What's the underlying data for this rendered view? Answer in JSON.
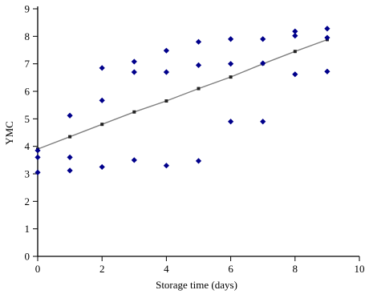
{
  "chart_data": {
    "type": "scatter",
    "title": "",
    "xlabel": "Storage time (days)",
    "ylabel": "YMC",
    "xlim": [
      0,
      10
    ],
    "ylim": [
      0,
      9
    ],
    "xticks": [
      0,
      2,
      4,
      6,
      8,
      10
    ],
    "yticks": [
      0,
      1,
      2,
      3,
      4,
      5,
      6,
      7,
      8,
      9
    ],
    "grid": false,
    "legend": "none",
    "colors": {
      "observed": "#00008b",
      "fitted": "#222222",
      "line": "#808080",
      "axis": "#000000"
    },
    "series": [
      {
        "kind": "observed",
        "marker": "diamond",
        "points": [
          [
            0,
            3.05
          ],
          [
            0,
            3.6
          ],
          [
            0,
            3.85
          ],
          [
            1,
            3.12
          ],
          [
            1,
            3.6
          ],
          [
            1,
            5.12
          ],
          [
            2,
            3.25
          ],
          [
            2,
            5.67
          ],
          [
            2,
            6.85
          ],
          [
            3,
            3.5
          ],
          [
            3,
            6.7
          ],
          [
            3,
            7.08
          ],
          [
            4,
            3.3
          ],
          [
            4,
            6.7
          ],
          [
            4,
            7.48
          ],
          [
            5,
            3.47
          ],
          [
            5,
            6.95
          ],
          [
            5,
            7.8
          ],
          [
            6,
            4.9
          ],
          [
            6,
            7.0
          ],
          [
            6,
            7.9
          ],
          [
            7,
            4.9
          ],
          [
            7,
            7.02
          ],
          [
            7,
            7.9
          ],
          [
            8,
            6.62
          ],
          [
            8,
            8.02
          ],
          [
            8,
            8.18
          ],
          [
            9,
            6.72
          ],
          [
            9,
            7.95
          ],
          [
            9,
            8.28
          ]
        ]
      },
      {
        "kind": "fitted",
        "marker": "square",
        "line": true,
        "points": [
          [
            0,
            3.9
          ],
          [
            1,
            4.35
          ],
          [
            2,
            4.8
          ],
          [
            3,
            5.25
          ],
          [
            4,
            5.65
          ],
          [
            5,
            6.1
          ],
          [
            6,
            6.52
          ],
          [
            7,
            7.0
          ],
          [
            8,
            7.45
          ],
          [
            9,
            7.88
          ]
        ]
      }
    ]
  }
}
